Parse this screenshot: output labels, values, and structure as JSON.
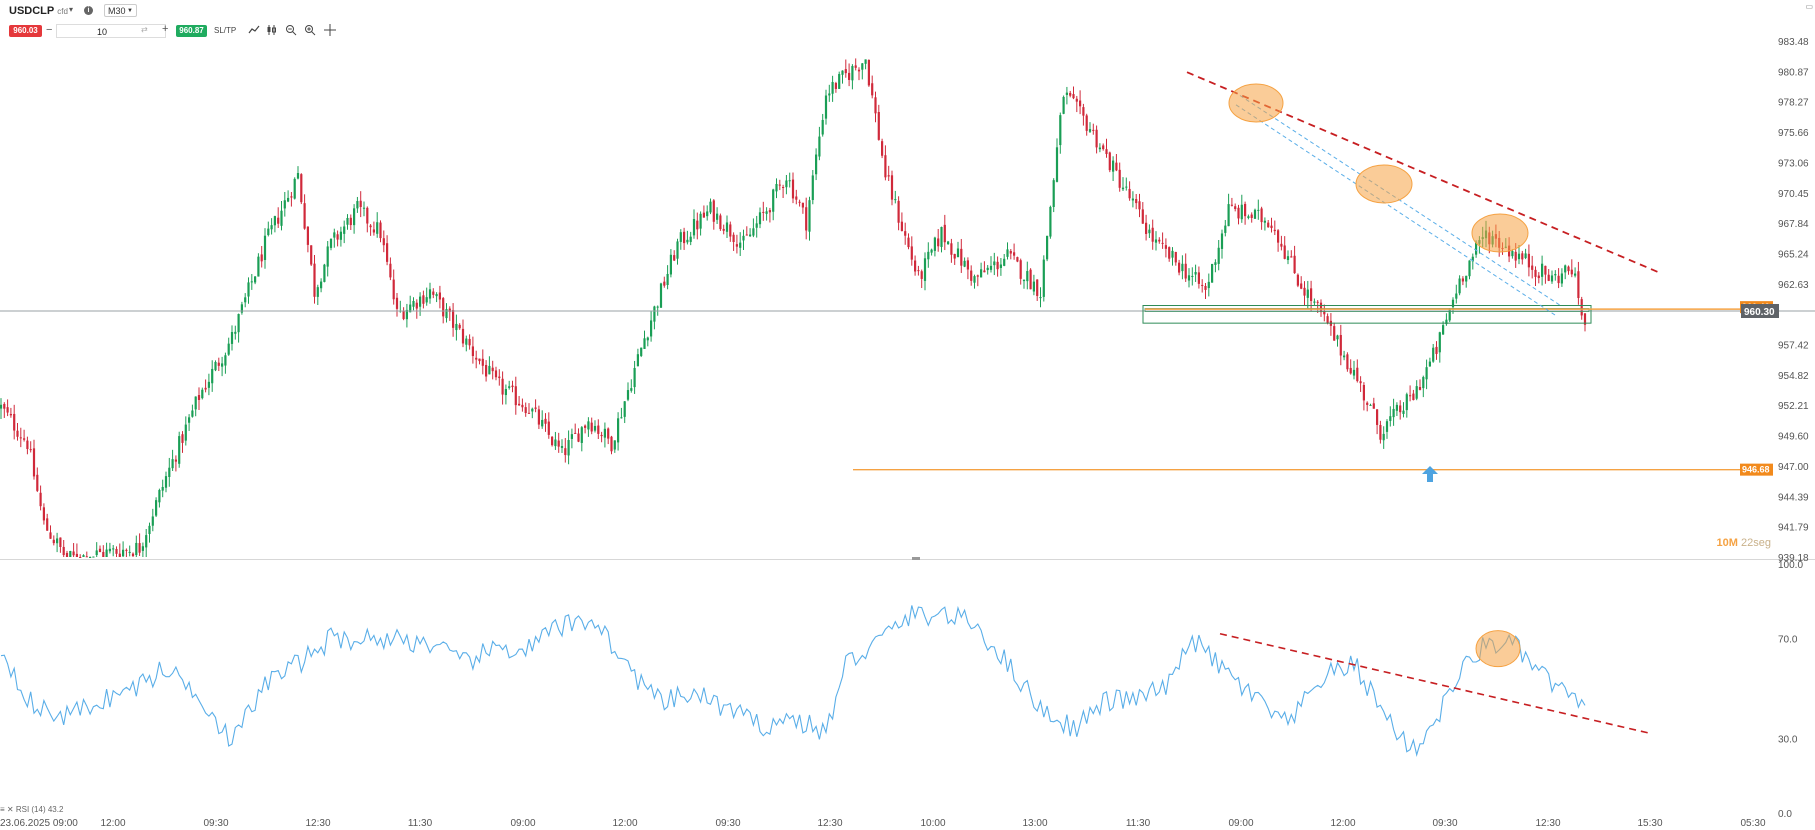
{
  "toolbar": {
    "symbol": "USDCLP",
    "symbol_suffix": "cfd",
    "timeframe": "M30",
    "sell_price": "960.03",
    "quantity": "10",
    "buy_price": "960.87",
    "sltp_label": "SL/TP",
    "minus_label": "−",
    "plus_label": "+",
    "info_label": "i",
    "dropdown_arrow": "▾",
    "tools": [
      "line-chart-icon",
      "candles-icon",
      "zoom-out-icon",
      "zoom-in-icon",
      "crosshair-icon"
    ]
  },
  "colors": {
    "up": "#1a9e55",
    "down": "#d0293a",
    "rsi": "#5aaee8",
    "trend": "#c71f22",
    "highlight": "#f5a243",
    "box": "#2e8b57",
    "price_line": "#9aa0a6"
  },
  "timer": {
    "minutes": "10M",
    "seconds": "22seg"
  },
  "rsi_label": "RSI (14) 43.2",
  "chart_data": [
    {
      "type": "candlestick",
      "title": "USDCLP M30",
      "y_ticks": [
        "983.48",
        "980.87",
        "978.27",
        "975.66",
        "973.06",
        "970.45",
        "967.84",
        "965.24",
        "962.63",
        "957.42",
        "954.82",
        "952.21",
        "949.60",
        "947.00",
        "944.39",
        "941.79",
        "939.18"
      ],
      "ylim": [
        939.18,
        983.48
      ],
      "x_ticks": [
        "23.06.2025 09:00",
        "12:00",
        "09:30",
        "12:30",
        "11:30",
        "09:00",
        "12:00",
        "09:30",
        "12:30",
        "10:00",
        "13:00",
        "11:30",
        "09:00",
        "12:00",
        "09:30",
        "12:30",
        "15:30",
        "05:30"
      ],
      "price_labels": [
        {
          "label": "960.46",
          "value": 960.46
        },
        {
          "label": "960.30",
          "value": 960.3
        },
        {
          "label": "946.68",
          "value": 946.68
        }
      ],
      "current_price": 960.3,
      "support_level": 946.68,
      "resistance_zone": [
        959.6,
        960.6
      ],
      "waypoints": [
        [
          0,
          952
        ],
        [
          8,
          949
        ],
        [
          13,
          942
        ],
        [
          20,
          939
        ],
        [
          42,
          940
        ],
        [
          50,
          946
        ],
        [
          60,
          953
        ],
        [
          70,
          958
        ],
        [
          80,
          966
        ],
        [
          90,
          972
        ],
        [
          95,
          962
        ],
        [
          100,
          966
        ],
        [
          108,
          969
        ],
        [
          115,
          967
        ],
        [
          120,
          960
        ],
        [
          130,
          962
        ],
        [
          140,
          958
        ],
        [
          150,
          954
        ],
        [
          160,
          952
        ],
        [
          170,
          948
        ],
        [
          178,
          951
        ],
        [
          185,
          949
        ],
        [
          195,
          958
        ],
        [
          205,
          966
        ],
        [
          215,
          969
        ],
        [
          225,
          966
        ],
        [
          232,
          969
        ],
        [
          238,
          972
        ],
        [
          244,
          968
        ],
        [
          250,
          979
        ],
        [
          262,
          982
        ],
        [
          268,
          972
        ],
        [
          278,
          963
        ],
        [
          285,
          967
        ],
        [
          295,
          963
        ],
        [
          305,
          965
        ],
        [
          315,
          962
        ],
        [
          322,
          979
        ],
        [
          330,
          976
        ],
        [
          340,
          971
        ],
        [
          350,
          966
        ],
        [
          358,
          964
        ],
        [
          365,
          962
        ],
        [
          372,
          969
        ],
        [
          385,
          968
        ],
        [
          393,
          963
        ],
        [
          400,
          960
        ],
        [
          410,
          955
        ],
        [
          418,
          950
        ],
        [
          428,
          953
        ],
        [
          435,
          957
        ],
        [
          442,
          963
        ],
        [
          450,
          967
        ],
        [
          460,
          965
        ],
        [
          470,
          963
        ],
        [
          476,
          964
        ],
        [
          480,
          959
        ]
      ]
    },
    {
      "type": "line",
      "title": "RSI (14)",
      "series": [
        {
          "name": "RSI (14)",
          "value_label": "43.2"
        }
      ],
      "y_ticks": [
        "100.0",
        "70.0",
        "30.0",
        "0.0"
      ],
      "ylim": [
        0,
        100
      ],
      "last_value": 43.2,
      "waypoints": [
        [
          0,
          66
        ],
        [
          10,
          42
        ],
        [
          20,
          39
        ],
        [
          30,
          45
        ],
        [
          40,
          50
        ],
        [
          50,
          58
        ],
        [
          60,
          48
        ],
        [
          70,
          28
        ],
        [
          80,
          52
        ],
        [
          90,
          60
        ],
        [
          100,
          70
        ],
        [
          108,
          70
        ],
        [
          120,
          70
        ],
        [
          130,
          68
        ],
        [
          140,
          60
        ],
        [
          150,
          66
        ],
        [
          160,
          66
        ],
        [
          168,
          74
        ],
        [
          180,
          78
        ],
        [
          190,
          58
        ],
        [
          200,
          44
        ],
        [
          210,
          48
        ],
        [
          220,
          42
        ],
        [
          230,
          35
        ],
        [
          240,
          38
        ],
        [
          250,
          32
        ],
        [
          256,
          60
        ],
        [
          265,
          68
        ],
        [
          275,
          79
        ],
        [
          285,
          80
        ],
        [
          295,
          76
        ],
        [
          305,
          60
        ],
        [
          315,
          42
        ],
        [
          325,
          34
        ],
        [
          335,
          45
        ],
        [
          345,
          46
        ],
        [
          355,
          52
        ],
        [
          360,
          71
        ],
        [
          370,
          58
        ],
        [
          380,
          46
        ],
        [
          390,
          35
        ],
        [
          400,
          54
        ],
        [
          410,
          60
        ],
        [
          420,
          38
        ],
        [
          428,
          25
        ],
        [
          435,
          38
        ],
        [
          442,
          56
        ],
        [
          450,
          68
        ],
        [
          458,
          68
        ],
        [
          465,
          58
        ],
        [
          472,
          50
        ],
        [
          477,
          44
        ]
      ]
    }
  ]
}
